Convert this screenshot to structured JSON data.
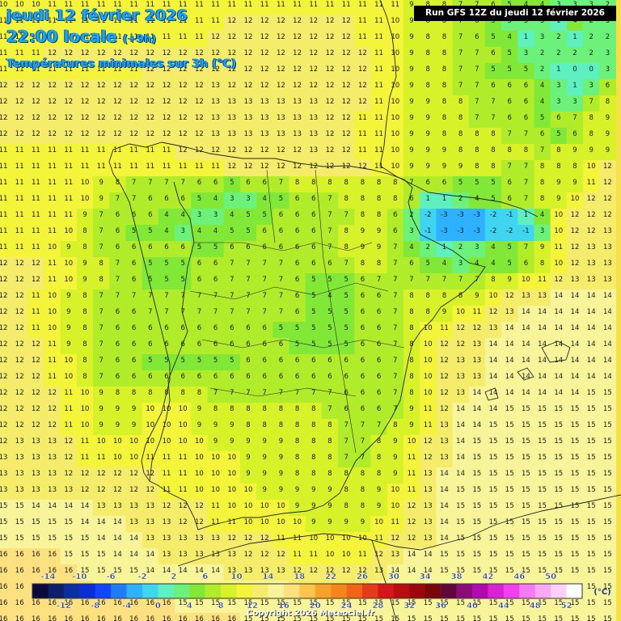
{
  "header": {
    "date": "jeudi 12 février 2026",
    "time": "22:00 locale",
    "offset": "(+9h)",
    "variable": "Températures minimales sur 3h (°C)"
  },
  "run_label": "Run GFS 12Z du jeudi 12 février 2026",
  "copyright": "Copyright 2026 Meteociel.fr",
  "legend": {
    "unit": "(°C)",
    "top_labels": [
      "-14",
      "-10",
      "-6",
      "-2",
      "2",
      "6",
      "10",
      "14",
      "18",
      "22",
      "26",
      "30",
      "34",
      "38",
      "42",
      "46",
      "50"
    ],
    "bottom_labels": [
      "-12",
      "-8",
      "-4",
      "0",
      "4",
      "8",
      "12",
      "16",
      "20",
      "24",
      "28",
      "32",
      "36",
      "40",
      "44",
      "48",
      "52"
    ],
    "colors": [
      "#0a0a3c",
      "#0c1f6b",
      "#0a2fa0",
      "#0a2dd6",
      "#1046ff",
      "#1f7cff",
      "#2eb2ff",
      "#3fd5f0",
      "#5ff0c0",
      "#6cf27a",
      "#82e838",
      "#b0ec2a",
      "#d8f22a",
      "#f4f43a",
      "#f4ec6a",
      "#f8f49a",
      "#fde080",
      "#fbc44a",
      "#f7a32a",
      "#f5861a",
      "#f0641a",
      "#e63a1a",
      "#d5171a",
      "#b80e10",
      "#9a060a",
      "#7a0608",
      "#62063a",
      "#8a0a78",
      "#b00ab0",
      "#d822d8",
      "#f040f0",
      "#f67af6",
      "#f7a8f7",
      "#fbd0fb",
      "#ffffff"
    ]
  },
  "field": {
    "grid_rows": [
      "10 10 10 11 11 11 11 11 11 11 11 11 11 11 11 11 11 11 11 11 11 11 11 11 11 9 8 8 7 7 6 5 4 4 3 3 3 2",
      "11 11 11 11 11 11 11 11 11 11 11 11 11 11 12 12 12 12 12 12 12 12 11 11 10 9 8 8 7 6 5 3 3 3 1 4 2 3",
      "11 11 11 11 11 11 11 11 11 11 11 11 11 12 12 12 12 12 12 12 12 12 11 11 10 9 8 8 7 6 5 4 1 3 2 1 2 2",
      "11 11 11 12 12 12 12 12 12 12 12 12 12 12 12 12 12 12 12 12 12 12 12 11 10 9 8 8 7 7 6 5 3 2 2 2 2 3",
      "11 11 11 11 11 11 11 11 11 12 12 12 12 12 12 12 12 12 12 12 12 12 12 11 10 9 8 8 7 7 5 5 5 2 1 0 0 3",
      "12 12 12 12 12 12 12 12 12 12 12 12 12 13 12 12 12 12 12 12 12 12 12 11 10 9 8 8 7 7 6 6 6 4 3 1 3 6",
      "12 12 12 12 12 12 12 12 12 12 12 12 12 13 13 13 13 13 13 13 12 12 12 11 10 9 9 8 8 7 7 6 6 4 3 3 7 8",
      "12 12 12 12 12 12 12 12 12 12 12 12 12 13 13 13 13 13 13 13 12 12 11 11 10 9 9 8 8 7 7 6 6 5 6 7 8 9",
      "12 12 12 12 12 12 12 12 12 12 12 12 12 13 13 13 13 13 13 13 12 12 11 11 10 9 9 8 8 8 8 7 7 6 5 6 8 9",
      "11 11 11 11 11 11 11 11 11 11 11 12 12 12 12 12 12 12 12 13 12 12 11 11 10 9 9 9 8 8 8 8 8 7 8 9 9 9",
      "11 11 11 11 11 11 11 11 11 11 11 11 11 11 12 12 12 12 12 12 12 12 12 11 10 9 9 9 9 8 8 7 7 8 8 8 10 12",
      "11 11 11 11 11 10 9 8 7 7 7 7 6 6 5 6 6 7 8 8 8 8 8 8 8 7 6 6 5 5 5 6 7 8 9 9 11 12",
      "11 11 11 11 11 10 9 7 7 6 6 6 5 4 3 3 4 5 6 6 7 8 8 8 8 6 1 1 2 4 5 6 7 8 9 10 12 12",
      "11 11 11 11 11 9 7 6 6 6 4 4 3 3 4 5 5 6 6 6 7 7 8 8 6 2 -2 -3 -3 -3 -2 -1 1 4 10 12 12 12",
      "11 11 11 11 10 8 7 6 5 5 4 3 4 4 5 5 6 6 6 6 7 8 9 9 6 3 -1 -3 -3 -3 -2 -2 -1 3 10 12 12 13",
      "11 11 11 10 9 8 7 6 6 6 6 6 5 5 6 6 6 6 6 6 7 8 9 9 7 4 2 1 2 3 4 5 7 9 11 12 13 13",
      "12 12 12 11 10 9 8 7 6 5 5 5 6 6 7 7 7 7 6 6 6 7 8 8 7 6 5 4 3 4 4 5 6 8 10 12 13 13",
      "12 12 12 11 10 9 8 7 6 5 5 5 6 6 7 7 7 7 6 5 5 5 6 7 7 7 7 7 7 7 8 9 10 11 12 13 13 13",
      "12 12 11 10 9 8 7 7 7 7 7 7 7 7 7 7 7 7 6 5 4 5 6 6 7 8 8 8 8 9 10 12 13 13 14 14 14 14",
      "12 12 11 10 9 8 7 6 6 7 7 7 7 7 7 7 7 7 6 5 5 5 6 6 7 8 8 9 10 11 12 13 14 14 14 14 14 14",
      "12 12 11 10 9 8 7 6 6 6 6 6 6 6 6 6 6 5 5 5 5 5 6 6 7 8 10 11 12 12 13 14 14 14 14 14 14 14",
      "12 12 12 11 9 8 7 6 6 6 6 6 6 6 6 6 6 6 5 5 5 5 6 6 7 8 10 12 12 13 14 14 14 14 14 14 14 14",
      "12 12 12 11 10 8 7 6 6 5 5 5 5 5 5 6 6 6 6 6 6 6 6 6 7 8 10 12 13 13 14 14 14 14 14 14 14 14",
      "12 12 12 11 10 8 7 6 6 6 6 6 6 6 6 6 6 6 6 6 6 6 6 6 7 8 10 12 13 13 14 14 14 14 14 14 14 14",
      "12 12 12 12 11 10 9 8 8 8 8 8 8 7 7 7 7 7 7 7 7 6 6 6 7 8 10 12 13 14 14 14 14 14 14 14 15 15",
      "12 12 12 12 11 10 9 9 9 10 10 10 9 8 8 8 8 8 8 8 7 6 6 6 7 9 11 12 14 14 14 15 15 15 15 15 15 15",
      "12 12 12 12 11 10 9 9 9 10 10 10 9 9 9 8 8 8 8 8 8 7 7 7 8 9 11 13 14 14 15 15 15 15 15 15 15 15",
      "12 13 13 13 12 11 10 10 10 10 10 10 10 9 9 9 9 9 8 8 8 7 7 8 9 10 12 13 14 15 15 15 15 15 15 15 15 15",
      "13 13 13 13 12 11 11 10 10 11 11 11 10 10 10 9 9 9 8 8 8 7 7 8 9 11 12 13 14 15 15 15 15 15 15 15 15 15",
      "13 13 13 13 12 12 12 12 12 12 11 11 10 10 10 9 9 9 8 8 8 8 8 8 9 11 13 14 14 15 15 15 15 15 15 15 15 15",
      "13 13 13 13 13 12 12 12 12 12 11 11 10 10 10 10 9 9 9 9 9 8 8 9 10 11 13 14 15 15 15 15 15 15 15 15 15 15",
      "15 15 14 14 14 14 13 13 13 13 12 12 12 11 10 10 10 10 9 9 9 8 8 9 10 12 13 14 15 15 15 15 15 15 15 15 15 15",
      "15 15 15 15 15 14 14 14 13 13 13 12 12 11 11 10 10 10 10 9 9 9 9 10 11 12 13 14 15 15 15 15 15 15 15 15 15 15",
      "15 15 15 15 15 15 14 14 14 13 13 13 13 13 12 12 12 11 11 10 10 10 10 11 12 12 13 14 15 15 15 15 15 15 15 15 15 15",
      "16 16 16 16 15 15 15 14 14 14 13 13 13 13 13 12 12 12 11 11 10 10 11 12 13 14 14 15 15 15 15 15 15 15 15 15 15 15",
      "16 16 16 16 16 15 15 15 15 14 14 14 14 14 13 13 13 13 12 12 12 12 12 13 14 14 14 15 15 15 15 15 15 15 15 15 15 15",
      "16 16 16 16 16 16 15 15 15 15 15 15 15 14 14 14 14 14 13 13 13 13 13 14 14 15 15 15 15 15 15 15 15 15 15 15 15 15",
      "16 16 16 16 16 16 16 16 16 16 16 15 15 15 15 15 15 15 15 15 15 15 15 15 15 15 15 15 15 15 15 15 15 15 15 15 15 15",
      "16 16 16 16 16 16 16 16 16 16 16 16 16 16 16 15 15 15 15 15 15 15 15 15 15 15 15 15 15 15 15 15 15 15 15 15 15 15"
    ]
  }
}
